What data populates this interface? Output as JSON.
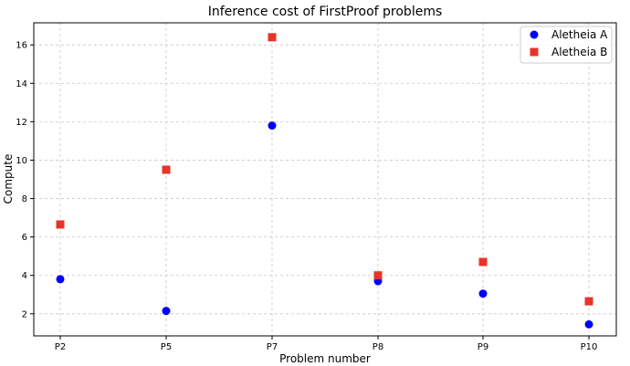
{
  "chart_data": {
    "type": "scatter",
    "title": "Inference cost of FirstProof problems",
    "xlabel": "Problem number",
    "ylabel": "Compute",
    "categories": [
      "P2",
      "P5",
      "P7",
      "P8",
      "P9",
      "P10"
    ],
    "ylim": [
      0.85,
      17.15
    ],
    "yticks": [
      2,
      4,
      6,
      8,
      10,
      12,
      14,
      16
    ],
    "grid": true,
    "legend_position": "top-right",
    "series": [
      {
        "name": "Aletheia A",
        "marker": "circle",
        "color": "#0000ff",
        "values": [
          3.8,
          2.15,
          11.8,
          3.7,
          3.05,
          1.45
        ]
      },
      {
        "name": "Aletheia B",
        "marker": "square",
        "color": "#e8332a",
        "values": [
          6.65,
          9.5,
          16.4,
          4.0,
          4.7,
          2.65
        ]
      }
    ]
  }
}
